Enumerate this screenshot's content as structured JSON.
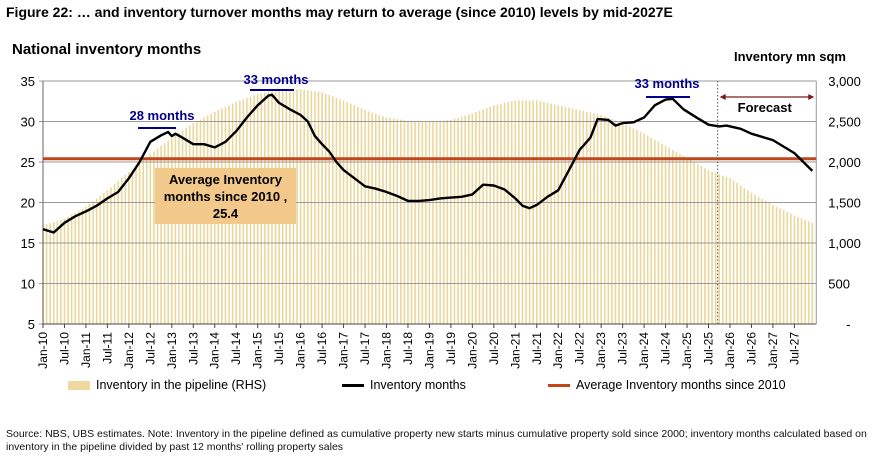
{
  "title": "Figure 22: … and inventory turnover months may return to average (since 2010) levels by mid-2027E",
  "chart_data": {
    "type": "line+bar",
    "lhs_title": "National inventory months",
    "rhs_title": "Inventory mn sqm",
    "ylim_left": [
      5,
      35
    ],
    "yticks_left": [
      "5",
      "10",
      "15",
      "20",
      "25",
      "30",
      "35"
    ],
    "ylim_right": [
      0,
      3000
    ],
    "yticks_right": [
      "-",
      "500",
      "1,000",
      "1,500",
      "2,000",
      "2,500",
      "3,000"
    ],
    "x_range": [
      "2010-01",
      "2027-12"
    ],
    "xticks": [
      "Jan-10",
      "Jul-10",
      "Jan-11",
      "Jul-11",
      "Jan-12",
      "Jul-12",
      "Jan-13",
      "Jul-13",
      "Jan-14",
      "Jul-14",
      "Jan-15",
      "Jul-15",
      "Jan-16",
      "Jul-16",
      "Jan-17",
      "Jul-17",
      "Jan-18",
      "Jul-18",
      "Jan-19",
      "Jul-19",
      "Jan-20",
      "Jul-20",
      "Jan-21",
      "Jul-21",
      "Jan-22",
      "Jul-22",
      "Jan-23",
      "Jul-23",
      "Jan-24",
      "Jul-24",
      "Jan-25",
      "Jul-25",
      "Jan-26",
      "Jul-26",
      "Jan-27",
      "Jul-27"
    ],
    "grid": true,
    "legend_position": "bottom",
    "series": [
      {
        "name": "Inventory in the pipeline (RHS)",
        "type": "bar",
        "axis": "right",
        "color": "#e9d79c",
        "points": [
          [
            "2010-01",
            1220
          ],
          [
            "2010-07",
            1300
          ],
          [
            "2011-01",
            1450
          ],
          [
            "2011-07",
            1650
          ],
          [
            "2012-01",
            1880
          ],
          [
            "2012-07",
            2100
          ],
          [
            "2013-01",
            2300
          ],
          [
            "2013-07",
            2480
          ],
          [
            "2014-01",
            2620
          ],
          [
            "2014-07",
            2740
          ],
          [
            "2015-01",
            2840
          ],
          [
            "2015-07",
            2890
          ],
          [
            "2016-01",
            2900
          ],
          [
            "2016-07",
            2860
          ],
          [
            "2017-01",
            2760
          ],
          [
            "2017-07",
            2640
          ],
          [
            "2018-01",
            2550
          ],
          [
            "2018-07",
            2510
          ],
          [
            "2019-01",
            2500
          ],
          [
            "2019-07",
            2520
          ],
          [
            "2020-01",
            2600
          ],
          [
            "2020-07",
            2700
          ],
          [
            "2021-01",
            2760
          ],
          [
            "2021-07",
            2760
          ],
          [
            "2022-01",
            2700
          ],
          [
            "2022-07",
            2640
          ],
          [
            "2023-01",
            2580
          ],
          [
            "2023-07",
            2480
          ],
          [
            "2024-01",
            2350
          ],
          [
            "2024-07",
            2200
          ],
          [
            "2025-01",
            2050
          ],
          [
            "2025-07",
            1900
          ],
          [
            "2026-01",
            1800
          ],
          [
            "2026-07",
            1620
          ],
          [
            "2027-01",
            1470
          ],
          [
            "2027-07",
            1340
          ],
          [
            "2027-12",
            1250
          ]
        ]
      },
      {
        "name": "Inventory months",
        "type": "line",
        "axis": "left",
        "color": "#000000",
        "points": [
          [
            "2010-01",
            16.7
          ],
          [
            "2010-04",
            16.3
          ],
          [
            "2010-07",
            17.5
          ],
          [
            "2010-10",
            18.3
          ],
          [
            "2011-01",
            18.9
          ],
          [
            "2011-04",
            19.6
          ],
          [
            "2011-07",
            20.5
          ],
          [
            "2011-10",
            21.3
          ],
          [
            "2012-01",
            23
          ],
          [
            "2012-04",
            25
          ],
          [
            "2012-07",
            27.5
          ],
          [
            "2012-10",
            28.3
          ],
          [
            "2012-12",
            28.7
          ],
          [
            "2013-01",
            28.2
          ],
          [
            "2013-02",
            28.5
          ],
          [
            "2013-04",
            28
          ],
          [
            "2013-07",
            27.2
          ],
          [
            "2013-10",
            27.2
          ],
          [
            "2014-01",
            26.8
          ],
          [
            "2014-04",
            27.5
          ],
          [
            "2014-07",
            28.8
          ],
          [
            "2014-10",
            30.5
          ],
          [
            "2015-01",
            32
          ],
          [
            "2015-04",
            33.2
          ],
          [
            "2015-05",
            33.3
          ],
          [
            "2015-07",
            32.3
          ],
          [
            "2015-10",
            31.5
          ],
          [
            "2016-01",
            30.8
          ],
          [
            "2016-03",
            30
          ],
          [
            "2016-05",
            28.2
          ],
          [
            "2016-07",
            27.2
          ],
          [
            "2016-09",
            26.3
          ],
          [
            "2016-11",
            25
          ],
          [
            "2017-01",
            24
          ],
          [
            "2017-04",
            23
          ],
          [
            "2017-07",
            22
          ],
          [
            "2017-10",
            21.7
          ],
          [
            "2018-01",
            21.3
          ],
          [
            "2018-04",
            20.8
          ],
          [
            "2018-07",
            20.2
          ],
          [
            "2018-10",
            20.2
          ],
          [
            "2019-01",
            20.3
          ],
          [
            "2019-04",
            20.5
          ],
          [
            "2019-07",
            20.6
          ],
          [
            "2019-10",
            20.7
          ],
          [
            "2020-01",
            21
          ],
          [
            "2020-04",
            22.2
          ],
          [
            "2020-07",
            22.1
          ],
          [
            "2020-10",
            21.6
          ],
          [
            "2021-01",
            20.5
          ],
          [
            "2021-03",
            19.6
          ],
          [
            "2021-05",
            19.3
          ],
          [
            "2021-07",
            19.7
          ],
          [
            "2021-10",
            20.7
          ],
          [
            "2022-01",
            21.5
          ],
          [
            "2022-04",
            24
          ],
          [
            "2022-07",
            26.5
          ],
          [
            "2022-10",
            28
          ],
          [
            "2022-12",
            30.3
          ],
          [
            "2023-03",
            30.2
          ],
          [
            "2023-05",
            29.5
          ],
          [
            "2023-07",
            29.8
          ],
          [
            "2023-10",
            29.9
          ],
          [
            "2024-01",
            30.5
          ],
          [
            "2024-04",
            32
          ],
          [
            "2024-07",
            32.7
          ],
          [
            "2024-09",
            32.8
          ],
          [
            "2024-12",
            31.5
          ],
          [
            "2025-04",
            30.4
          ],
          [
            "2025-07",
            29.6
          ],
          [
            "2025-10",
            29.4
          ],
          [
            "2025-12",
            29.5
          ],
          [
            "2026-04",
            29.1
          ],
          [
            "2026-07",
            28.5
          ],
          [
            "2027-01",
            27.7
          ],
          [
            "2027-07",
            26.1
          ],
          [
            "2027-12",
            23.9
          ]
        ]
      },
      {
        "name": "Average Inventory months since 2010",
        "type": "hline",
        "axis": "left",
        "color": "#c2461b",
        "value": 25.4
      }
    ],
    "annotations": {
      "peak_2013": "28 months",
      "peak_2015": "33 months",
      "peak_2024": "33 months",
      "average_box": "Average Inventory months since 2010 , 25.4",
      "forecast": "Forecast",
      "forecast_start": "2025-09"
    },
    "annotation_color": "#00008b"
  },
  "footnote": "Source: NBS, UBS estimates. Note: Inventory in the pipeline defined as cumulative property new starts minus cumulative property sold since 2000; inventory months calculated based on inventory in the pipeline divided by past 12 months' rolling property sales"
}
